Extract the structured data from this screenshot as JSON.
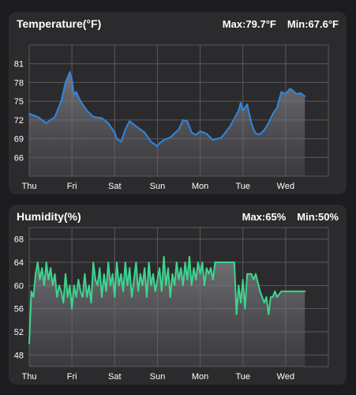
{
  "temperature": {
    "title": "Temperature(°F)",
    "max_label": "Max:79.7°F",
    "min_label": "Min:67.6°F"
  },
  "humidity": {
    "title": "Humidity(%)",
    "max_label": "Max:65%",
    "min_label": "Min:50%"
  },
  "colors": {
    "page_background": "#1c1c1e",
    "card_background": "#2b2b2d",
    "grid": "#5a5a5e",
    "temperature_line": "#2f86e0",
    "humidity_line": "#3dd58f"
  },
  "chart_data": [
    {
      "type": "area",
      "title": "Temperature(°F)",
      "x_tick_labels": [
        "Thu",
        "Fri",
        "Sat",
        "Sun",
        "Mon",
        "Tue",
        "Wed"
      ],
      "y_ticks": [
        66,
        69,
        72,
        75,
        78,
        81
      ],
      "ylim": [
        63,
        84
      ],
      "xlim": [
        0,
        7
      ],
      "grid": true,
      "series": [
        {
          "x": [
            0,
            0.2,
            0.4,
            0.6,
            0.75,
            0.85,
            0.95,
            1.0,
            1.05,
            1.1,
            1.2,
            1.35,
            1.5,
            1.7,
            1.85,
            2.0,
            2.05,
            2.15,
            2.25,
            2.35,
            2.5,
            2.7,
            2.85,
            3.0,
            3.05,
            3.15,
            3.3,
            3.5,
            3.6,
            3.7,
            3.8,
            3.9,
            4.0,
            4.15,
            4.3,
            4.5,
            4.7,
            4.9,
            4.95,
            5.0,
            5.1,
            5.2,
            5.25,
            5.3,
            5.4,
            5.5,
            5.6,
            5.7,
            5.8,
            5.9,
            6.0,
            6.1,
            6.15,
            6.25,
            6.35,
            6.45
          ],
          "y": [
            73,
            72.5,
            71.5,
            72.5,
            75,
            78,
            79.7,
            78.5,
            76,
            76.5,
            75,
            73.5,
            72.5,
            72.3,
            71.5,
            70,
            69,
            68.5,
            70.5,
            71.8,
            71,
            70,
            68.5,
            67.8,
            68.3,
            68.8,
            69.2,
            70.5,
            72,
            71.8,
            70,
            69.6,
            70.2,
            69.8,
            68.8,
            69.2,
            71,
            73.5,
            74.8,
            73.5,
            74.5,
            71.5,
            70.5,
            69.8,
            69.7,
            70.4,
            71.5,
            73,
            74,
            76.5,
            76.2,
            77,
            76.8,
            76.2,
            76.3,
            75.8
          ]
        }
      ]
    },
    {
      "type": "area",
      "title": "Humidity(%)",
      "x_tick_labels": [
        "Thu",
        "Fri",
        "Sat",
        "Sun",
        "Mon",
        "Tue",
        "Wed"
      ],
      "y_ticks": [
        48,
        52,
        56,
        60,
        64,
        68
      ],
      "ylim": [
        46,
        70
      ],
      "xlim": [
        0,
        7
      ],
      "grid": true,
      "series": [
        {
          "x": [
            0,
            0.05,
            0.1,
            0.15,
            0.2,
            0.25,
            0.3,
            0.35,
            0.4,
            0.45,
            0.5,
            0.55,
            0.6,
            0.65,
            0.7,
            0.75,
            0.8,
            0.85,
            0.9,
            0.95,
            1.0,
            1.05,
            1.1,
            1.15,
            1.2,
            1.25,
            1.3,
            1.35,
            1.4,
            1.45,
            1.5,
            1.55,
            1.6,
            1.65,
            1.7,
            1.75,
            1.8,
            1.85,
            1.9,
            1.95,
            2.0,
            2.05,
            2.1,
            2.15,
            2.2,
            2.25,
            2.3,
            2.35,
            2.4,
            2.45,
            2.5,
            2.55,
            2.6,
            2.65,
            2.7,
            2.75,
            2.8,
            2.85,
            2.9,
            2.95,
            3.0,
            3.05,
            3.1,
            3.15,
            3.2,
            3.25,
            3.3,
            3.35,
            3.4,
            3.45,
            3.5,
            3.55,
            3.6,
            3.65,
            3.7,
            3.75,
            3.8,
            3.85,
            3.9,
            3.95,
            4.0,
            4.05,
            4.1,
            4.15,
            4.2,
            4.25,
            4.3,
            4.35,
            4.4,
            4.5,
            4.6,
            4.7,
            4.8,
            4.85,
            4.9,
            4.95,
            5.0,
            5.05,
            5.1,
            5.15,
            5.2,
            5.25,
            5.3,
            5.4,
            5.5,
            5.55,
            5.6,
            5.65,
            5.7,
            5.75,
            5.8,
            5.9,
            6.0,
            6.2,
            6.45
          ],
          "y": [
            50,
            59,
            58,
            62,
            64,
            61,
            63,
            60,
            64,
            61,
            63,
            60,
            62,
            58,
            60,
            59,
            57,
            62,
            58,
            60,
            56,
            60,
            58,
            61,
            59,
            58,
            62,
            58,
            60,
            57,
            64,
            61,
            60,
            63,
            58,
            62,
            59,
            64,
            60,
            62,
            58,
            64,
            60,
            62,
            59,
            64,
            60,
            63,
            58,
            61,
            64,
            59,
            62,
            60,
            63,
            58,
            64,
            60,
            62,
            59,
            61,
            63,
            59,
            65,
            60,
            63,
            58,
            62,
            60,
            64,
            61,
            63,
            60,
            64,
            61,
            65,
            60,
            63,
            61,
            64,
            62,
            64,
            60,
            63,
            62,
            63,
            61,
            64,
            64,
            64,
            64,
            64,
            64,
            55,
            60,
            57,
            61,
            56,
            62,
            62,
            62,
            61,
            62,
            59,
            57,
            58,
            55,
            58,
            58,
            59,
            58,
            59,
            59,
            59,
            59
          ]
        }
      ]
    }
  ]
}
